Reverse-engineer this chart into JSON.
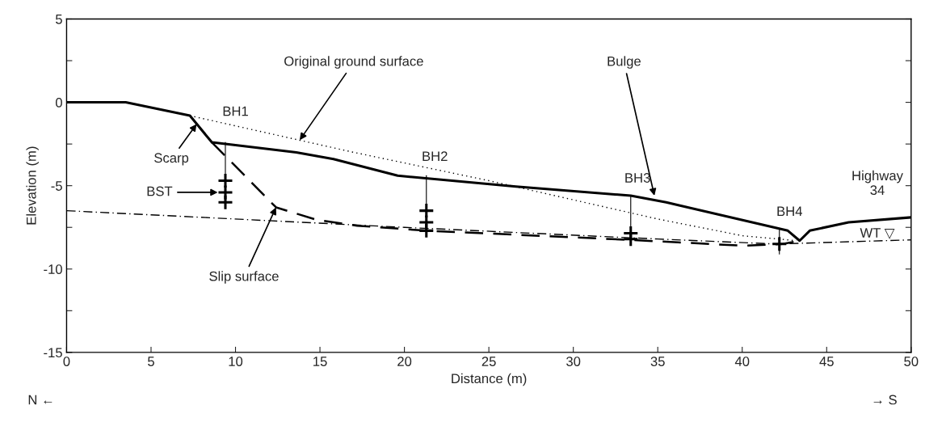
{
  "chart_data": {
    "type": "line",
    "xlabel": "Distance (m)",
    "ylabel": "Elevation (m)",
    "xlim": [
      0,
      50
    ],
    "ylim": [
      -15,
      5
    ],
    "xticks": [
      0,
      5,
      10,
      15,
      20,
      25,
      30,
      35,
      40,
      45,
      50
    ],
    "yticks": [
      5,
      {
        "value": 2.5,
        "label": null
      },
      0,
      {
        "value": -2.5,
        "label": null
      },
      -5,
      {
        "value": -7.5,
        "label": null
      },
      -10,
      {
        "value": -12.5,
        "label": null
      },
      -15
    ],
    "grid": false,
    "legend": false,
    "series": [
      {
        "color": "#000000",
        "line_style": "solid",
        "x": [
          0,
          3.5,
          7.3,
          8.6,
          13.6,
          15.8,
          19.6,
          26.6,
          33.4,
          35.5,
          42.7,
          43.4,
          44.0,
          46.3,
          50
        ],
        "values": [
          0,
          0,
          -0.8,
          -2.4,
          -3.0,
          -3.4,
          -4.4,
          -5.05,
          -5.6,
          -6.0,
          -7.7,
          -8.3,
          -7.7,
          -7.2,
          -6.9
        ]
      },
      {
        "color": "#000000",
        "line_style": "dotted",
        "x": [
          7.3,
          17,
          25,
          35,
          40,
          43.2
        ],
        "values": [
          -0.8,
          -3.0,
          -4.7,
          -7.0,
          -8.0,
          -8.3
        ]
      },
      {
        "color": "#000000",
        "line_style": "dashed",
        "x": [
          8.6,
          12.4,
          14.8,
          17.2,
          21.3,
          33.3,
          36.2,
          40.0,
          42.4,
          43.4
        ],
        "values": [
          -2.4,
          -6.3,
          -7.05,
          -7.4,
          -7.7,
          -8.25,
          -8.4,
          -8.6,
          -8.5,
          -8.3
        ]
      },
      {
        "color": "#000000",
        "line_style": "dashdot",
        "x": [
          0,
          20,
          35,
          42,
          50
        ],
        "values": [
          -6.5,
          -7.5,
          -8.2,
          -8.5,
          -8.25
        ]
      },
      {
        "color": "#000000",
        "line_style": "solid",
        "x": [
          9.4,
          9.4
        ],
        "values": [
          -2.4,
          -6.0
        ]
      },
      {
        "color": "#000000",
        "line_style": "solid",
        "x": [
          21.3,
          21.3
        ],
        "values": [
          -4.4,
          -8.0
        ]
      },
      {
        "color": "#000000",
        "line_style": "solid",
        "x": [
          33.4,
          33.4
        ],
        "values": [
          -5.6,
          -8.3
        ]
      },
      {
        "color": "#000000",
        "line_style": "solid",
        "x": [
          42.2,
          42.2
        ],
        "values": [
          -7.55,
          -9.1
        ]
      },
      {
        "type": "scatter",
        "color": "#000000",
        "marker": "cross",
        "x": [
          9.4,
          9.4,
          9.4,
          21.3,
          21.3,
          21.3,
          33.4,
          33.4,
          42.2
        ],
        "values": [
          -4.7,
          -5.4,
          -6.0,
          -6.5,
          -7.2,
          -7.7,
          -7.85,
          -8.2,
          -8.5
        ]
      }
    ],
    "annotations": [
      {
        "text": "Original ground surface",
        "x": 13.8,
        "y": -2.27
      },
      {
        "text": "Bulge",
        "x": 34.8,
        "y": -5.6
      },
      {
        "text": "Scarp",
        "x": 7.7,
        "y": -1.3
      },
      {
        "text": "Slip surface",
        "x": 12.4,
        "y": -6.3
      },
      "BST",
      {
        "text": "BH1",
        "x": 9.4,
        "y": -2.4
      },
      {
        "text": "BH2",
        "x": 21.3,
        "y": -4.4
      },
      {
        "text": "BH3",
        "x": 33.4,
        "y": -5.6
      },
      {
        "text": "BH4",
        "x": 42.2,
        "y": -7.55
      },
      {
        "text": "Highway\n34",
        "x": 47.5,
        "y": -7.0
      },
      {
        "text": "WT ▽",
        "x": 48.0,
        "y": -8.3
      },
      "N ←",
      "→ S"
    ]
  }
}
